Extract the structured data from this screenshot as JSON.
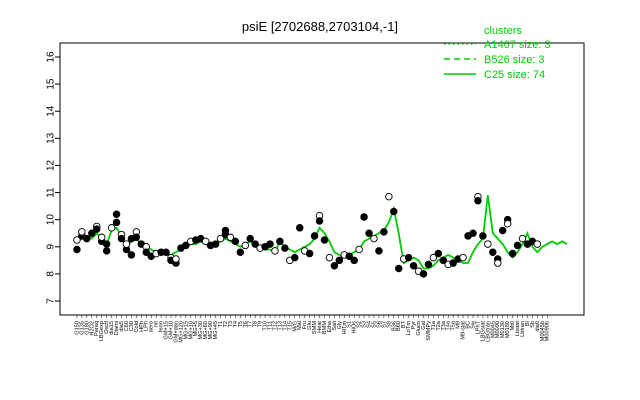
{
  "chart_data": {
    "type": "line",
    "title": "psiE [2702688,2703104,-1]",
    "xlabel": "",
    "ylabel": "",
    "ylim": [
      7,
      16
    ],
    "yticks": [
      7,
      8,
      9,
      10,
      11,
      12,
      13,
      14,
      15,
      16
    ],
    "grid": false,
    "legend": {
      "title": "clusters",
      "position": "top-right",
      "entries": [
        {
          "label": "A1467 size: 3",
          "style": "dotted"
        },
        {
          "label": "B526 size: 3",
          "style": "dashed"
        },
        {
          "label": "C25 size: 74",
          "style": "solid"
        }
      ]
    },
    "colors": {
      "line": "#00cc00",
      "points": "#000000"
    },
    "categories": [
      "G150",
      "G135",
      "G180",
      "H2O2",
      "Paraq",
      "LBGexp",
      "Oxctl",
      "dia15",
      "Diami",
      "dia5",
      "C60",
      "C30",
      "Cold",
      "HPh",
      "LPh",
      "aero",
      "nit",
      "ferm",
      "GM+15",
      "GM+10",
      "GM+dan",
      "MG+120",
      "MG+15",
      "MG+10",
      "MG+5",
      "MG+30",
      "MG+60",
      "MG+90",
      "MG+45",
      "T1",
      "T2",
      "T3",
      "T4",
      "T5",
      "T6",
      "T7",
      "T8",
      "T9",
      "T10",
      "T11",
      "T12",
      "T13",
      "T14",
      "T15",
      "M/G",
      "Mal",
      "Fru",
      "Glu",
      "SMM",
      "Heat",
      "BMM",
      "Etha",
      "Salt",
      "Gly",
      "HiTm",
      "S1",
      "HiOs",
      "S2",
      "S3",
      "S4",
      "S5",
      "S6",
      "S7",
      "S8",
      "B36",
      "B60",
      "BT",
      "LoTm",
      "Pyr",
      "Gluco",
      "Gal",
      "SMMPy",
      "T1a",
      "T2a",
      "T3a",
      "T4a",
      "T5a",
      "M9",
      "M9-stat",
      "BC",
      "Sw",
      "LPhT",
      "LBGstat",
      "LBGtran",
      "M0045",
      "M0090",
      "M0130",
      "M0180",
      "Mt0",
      "Lbstat",
      "Lbtran",
      "BI",
      "Sb",
      "dia0",
      "M0045b",
      "M0090b"
    ],
    "labels_shown": [
      "G150",
      "G135",
      "G180",
      "H2O2",
      "Paraq",
      "LBGexp",
      "Oxctl",
      "dia15",
      "Diami",
      "dia5",
      "C60",
      "C30",
      "Cold",
      "HPh",
      "LPh",
      "aero",
      "nit",
      "ferm",
      "GM+15",
      "GM+10",
      "GM+dan",
      "MG+120",
      "MG+15",
      "MG+10",
      "MG+5",
      "MG+30",
      "MG+60",
      "MG+90",
      "MG+45",
      "T1",
      "T2",
      "T3",
      "T4",
      "T5",
      "T6",
      "T7",
      "T8",
      "T9",
      "T10",
      "T11",
      "T12",
      "T13",
      "T14",
      "T15",
      "M/G",
      "Mal",
      "Fru",
      "Glu",
      "SMM",
      "Heat",
      "BMM",
      "Etha",
      "Salt",
      "Gly",
      "HiTm",
      "S1",
      "HiOs",
      "S2",
      "S3",
      "S4",
      "S5",
      "S6",
      "S7",
      "S8",
      "B36",
      "B60",
      "BT",
      "LoTm",
      "Pyr",
      "Gluco",
      "Gal",
      "SMMPy",
      "T1a",
      "T2a",
      "T3a",
      "T4a",
      "T5a",
      "M9",
      "M9-stat",
      "BC",
      "Sw",
      "LPhT",
      "LBGstat",
      "LBGtran",
      "M0045",
      "M0090",
      "M0130",
      "M0180",
      "Mt0",
      "Lbstat",
      "Lbtran",
      "BI",
      "Sb",
      "dia0",
      "M0045b",
      "M0090b"
    ],
    "series": [
      {
        "name": "C25 size: 74",
        "x": [
          0,
          2,
          4,
          6,
          8,
          10,
          12,
          14,
          16,
          18,
          20,
          22,
          24,
          26,
          28,
          30,
          32,
          34,
          36,
          38,
          40,
          42,
          44,
          46,
          48,
          50,
          52,
          54,
          56,
          58,
          60,
          62,
          64,
          66,
          68,
          70,
          72,
          74,
          76,
          78,
          80,
          82,
          84,
          86,
          88,
          90,
          92,
          94,
          96,
          98,
          100,
          102,
          104,
          106,
          108,
          110,
          112,
          114,
          116,
          118,
          120,
          122,
          124,
          126,
          128,
          130,
          132,
          134,
          136,
          138,
          140,
          142,
          144,
          146,
          148,
          150,
          152,
          154,
          156,
          158,
          160,
          162,
          164,
          166,
          168,
          170,
          172,
          174,
          176,
          178,
          180,
          182,
          184,
          186,
          188,
          190,
          192,
          194,
          196,
          198
        ],
        "y": [
          9.2,
          9.3,
          9.4,
          9.3,
          9.5,
          9.3,
          9.1,
          9.6,
          9.7,
          9.4,
          9.0,
          9.2,
          9.3,
          9.1,
          9.0,
          8.9,
          8.8,
          8.8,
          8.7,
          8.7,
          8.8,
          8.9,
          9.0,
          9.1,
          9.1,
          9.2,
          9.1,
          9.0,
          9.1,
          9.2,
          9.3,
          9.2,
          9.1,
          9.0,
          9.1,
          9.2,
          9.1,
          9.0,
          8.9,
          8.9,
          8.8,
          9.2,
          9.0,
          8.9,
          8.8,
          8.9,
          9.0,
          9.1,
          9.3,
          9.7,
          9.5,
          9.2,
          8.8,
          8.7,
          8.6,
          8.7,
          8.8,
          8.9,
          9.2,
          9.3,
          9.4,
          9.5,
          9.6,
          9.9,
          10.4,
          9.5,
          8.4,
          8.5,
          8.6,
          8.5,
          8.2,
          8.2,
          8.3,
          8.5,
          8.6,
          8.7,
          8.6,
          8.5,
          8.4,
          8.4,
          8.8,
          9.1,
          9.3,
          10.9,
          9.5,
          9.3,
          9.1,
          8.8,
          8.6,
          8.8,
          9.1,
          9.5,
          9.0,
          8.8,
          9.0,
          9.1,
          9.2,
          9.1,
          9.2,
          9.1
        ]
      }
    ],
    "points": [
      {
        "x": 0,
        "y": 9.25
      },
      {
        "x": 0,
        "y": 8.9
      },
      {
        "x": 2,
        "y": 9.4
      },
      {
        "x": 2,
        "y": 9.55
      },
      {
        "x": 4,
        "y": 9.3
      },
      {
        "x": 6,
        "y": 9.5
      },
      {
        "x": 8,
        "y": 9.75
      },
      {
        "x": 8,
        "y": 9.65
      },
      {
        "x": 10,
        "y": 9.2
      },
      {
        "x": 10,
        "y": 9.35
      },
      {
        "x": 12,
        "y": 8.85
      },
      {
        "x": 12,
        "y": 9.1
      },
      {
        "x": 14,
        "y": 9.7
      },
      {
        "x": 16,
        "y": 10.2
      },
      {
        "x": 16,
        "y": 9.9
      },
      {
        "x": 18,
        "y": 9.45
      },
      {
        "x": 18,
        "y": 9.3
      },
      {
        "x": 20,
        "y": 8.9
      },
      {
        "x": 20,
        "y": 9.1
      },
      {
        "x": 22,
        "y": 8.7
      },
      {
        "x": 22,
        "y": 9.3
      },
      {
        "x": 24,
        "y": 9.55
      },
      {
        "x": 24,
        "y": 9.35
      },
      {
        "x": 26,
        "y": 9.1
      },
      {
        "x": 28,
        "y": 9.0
      },
      {
        "x": 28,
        "y": 8.8
      },
      {
        "x": 30,
        "y": 8.65
      },
      {
        "x": 32,
        "y": 8.75
      },
      {
        "x": 34,
        "y": 8.8
      },
      {
        "x": 36,
        "y": 8.8
      },
      {
        "x": 38,
        "y": 8.6
      },
      {
        "x": 38,
        "y": 8.5
      },
      {
        "x": 40,
        "y": 8.4
      },
      {
        "x": 40,
        "y": 8.55
      },
      {
        "x": 42,
        "y": 8.95
      },
      {
        "x": 44,
        "y": 9.05
      },
      {
        "x": 46,
        "y": 9.2
      },
      {
        "x": 48,
        "y": 9.25
      },
      {
        "x": 50,
        "y": 9.3
      },
      {
        "x": 52,
        "y": 9.2
      },
      {
        "x": 54,
        "y": 9.05
      },
      {
        "x": 56,
        "y": 9.1
      },
      {
        "x": 58,
        "y": 9.3
      },
      {
        "x": 60,
        "y": 9.45
      },
      {
        "x": 60,
        "y": 9.6
      },
      {
        "x": 62,
        "y": 9.35
      },
      {
        "x": 64,
        "y": 9.2
      },
      {
        "x": 66,
        "y": 8.8
      },
      {
        "x": 68,
        "y": 9.05
      },
      {
        "x": 70,
        "y": 9.3
      },
      {
        "x": 72,
        "y": 9.1
      },
      {
        "x": 74,
        "y": 8.95
      },
      {
        "x": 76,
        "y": 9.0
      },
      {
        "x": 78,
        "y": 9.1
      },
      {
        "x": 80,
        "y": 8.85
      },
      {
        "x": 82,
        "y": 9.2
      },
      {
        "x": 84,
        "y": 8.95
      },
      {
        "x": 86,
        "y": 8.5
      },
      {
        "x": 88,
        "y": 8.6
      },
      {
        "x": 90,
        "y": 9.7
      },
      {
        "x": 92,
        "y": 8.85
      },
      {
        "x": 94,
        "y": 8.75
      },
      {
        "x": 96,
        "y": 9.4
      },
      {
        "x": 98,
        "y": 10.15
      },
      {
        "x": 98,
        "y": 9.95
      },
      {
        "x": 100,
        "y": 9.25
      },
      {
        "x": 102,
        "y": 8.6
      },
      {
        "x": 104,
        "y": 8.3
      },
      {
        "x": 106,
        "y": 8.5
      },
      {
        "x": 108,
        "y": 8.7
      },
      {
        "x": 110,
        "y": 8.65
      },
      {
        "x": 112,
        "y": 8.5
      },
      {
        "x": 114,
        "y": 8.9
      },
      {
        "x": 116,
        "y": 10.1
      },
      {
        "x": 118,
        "y": 9.5
      },
      {
        "x": 120,
        "y": 9.3
      },
      {
        "x": 122,
        "y": 8.85
      },
      {
        "x": 124,
        "y": 9.55
      },
      {
        "x": 126,
        "y": 10.85
      },
      {
        "x": 128,
        "y": 10.3
      },
      {
        "x": 130,
        "y": 8.2
      },
      {
        "x": 132,
        "y": 8.55
      },
      {
        "x": 134,
        "y": 8.6
      },
      {
        "x": 136,
        "y": 8.3
      },
      {
        "x": 138,
        "y": 8.1
      },
      {
        "x": 140,
        "y": 8.0
      },
      {
        "x": 142,
        "y": 8.35
      },
      {
        "x": 144,
        "y": 8.6
      },
      {
        "x": 146,
        "y": 8.75
      },
      {
        "x": 148,
        "y": 8.5
      },
      {
        "x": 150,
        "y": 8.35
      },
      {
        "x": 152,
        "y": 8.4
      },
      {
        "x": 154,
        "y": 8.55
      },
      {
        "x": 156,
        "y": 8.6
      },
      {
        "x": 158,
        "y": 9.4
      },
      {
        "x": 160,
        "y": 9.5
      },
      {
        "x": 162,
        "y": 10.85
      },
      {
        "x": 162,
        "y": 10.7
      },
      {
        "x": 164,
        "y": 9.4
      },
      {
        "x": 166,
        "y": 9.1
      },
      {
        "x": 168,
        "y": 8.8
      },
      {
        "x": 170,
        "y": 8.55
      },
      {
        "x": 170,
        "y": 8.4
      },
      {
        "x": 172,
        "y": 9.6
      },
      {
        "x": 174,
        "y": 10.0
      },
      {
        "x": 174,
        "y": 9.85
      },
      {
        "x": 176,
        "y": 8.75
      },
      {
        "x": 178,
        "y": 9.05
      },
      {
        "x": 180,
        "y": 9.3
      },
      {
        "x": 182,
        "y": 9.1
      },
      {
        "x": 184,
        "y": 9.2
      },
      {
        "x": 186,
        "y": 9.1
      }
    ]
  }
}
